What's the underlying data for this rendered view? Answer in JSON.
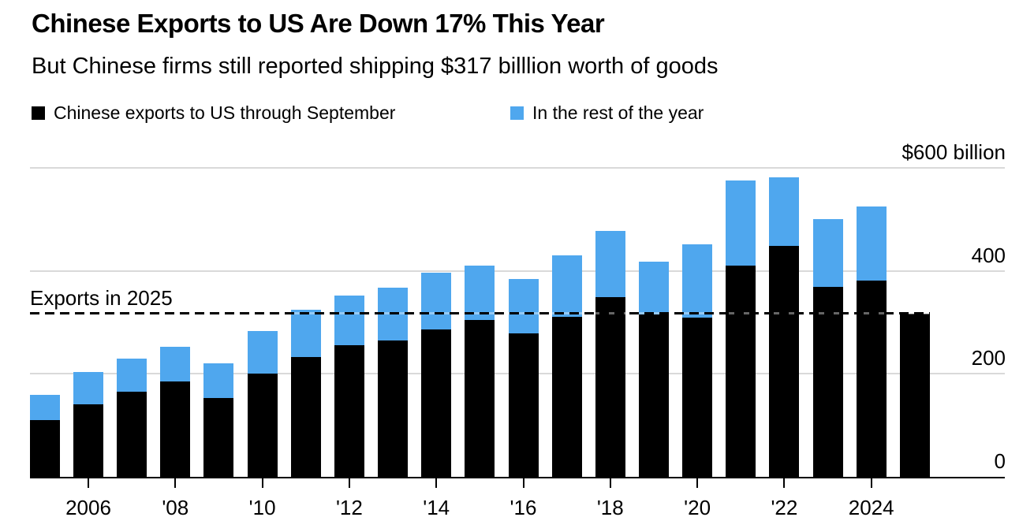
{
  "header": {
    "title": "Chinese Exports to US Are Down 17% This Year",
    "subtitle": "But Chinese firms still reported shipping $317 billlion worth of goods"
  },
  "colors": {
    "through_september": "#000000",
    "rest_of_year": "#4fa7ee",
    "gridline": "#d9d9d9",
    "axis": "#000000",
    "background": "#ffffff"
  },
  "chart_data": {
    "type": "bar",
    "stacked": true,
    "unit": "USD billions",
    "title": "Chinese Exports to US Are Down 17% This Year",
    "subtitle": "But Chinese firms still reported shipping $317 billlion worth of goods",
    "legend_position": "top",
    "grid": "horizontal",
    "ylim": [
      0,
      600
    ],
    "categories": [
      2005,
      2006,
      2007,
      2008,
      2009,
      2010,
      2011,
      2012,
      2013,
      2014,
      2015,
      2016,
      2017,
      2018,
      2019,
      2020,
      2021,
      2022,
      2023,
      2024,
      2025
    ],
    "series": [
      {
        "name": "Chinese exports to US through September",
        "color": "#000000",
        "values": [
          110,
          141,
          165,
          185,
          153,
          200,
          233,
          256,
          265,
          286,
          304,
          278,
          310,
          349,
          315,
          309,
          410,
          448,
          369,
          381,
          317
        ]
      },
      {
        "name": "In the rest of the year",
        "color": "#4fa7ee",
        "values": [
          49,
          62,
          65,
          67,
          68,
          83,
          92,
          96,
          103,
          111,
          106,
          107,
          120,
          129,
          103,
          143,
          166,
          134,
          131,
          144,
          0
        ]
      }
    ],
    "totals": [
      159,
      203,
      230,
      252,
      221,
      283,
      325,
      352,
      368,
      397,
      410,
      385,
      430,
      478,
      418,
      452,
      576,
      582,
      500,
      525,
      317
    ],
    "y_ticks": [
      {
        "value": 600,
        "label": "$600 billion"
      },
      {
        "value": 400,
        "label": "400"
      },
      {
        "value": 200,
        "label": "200"
      },
      {
        "value": 0,
        "label": "0"
      }
    ],
    "x_ticks": [
      {
        "year": 2006,
        "label": "2006"
      },
      {
        "year": 2008,
        "label": "'08"
      },
      {
        "year": 2010,
        "label": "'10"
      },
      {
        "year": 2012,
        "label": "'12"
      },
      {
        "year": 2014,
        "label": "'14"
      },
      {
        "year": 2016,
        "label": "'16"
      },
      {
        "year": 2018,
        "label": "'18"
      },
      {
        "year": 2020,
        "label": "'20"
      },
      {
        "year": 2022,
        "label": "'22"
      },
      {
        "year": 2024,
        "label": "2024"
      }
    ],
    "reference_line": {
      "label": "Exports in 2025",
      "value": 317
    }
  }
}
